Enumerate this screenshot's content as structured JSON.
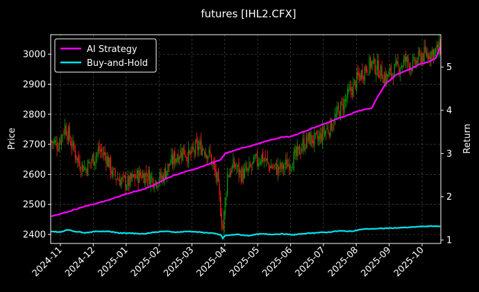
{
  "chart_data": {
    "type": "candlestick+line",
    "title": "futures [IHL2.CFX]",
    "ylabel_left": "Price",
    "ylabel_right": "Return",
    "ylim_left": [
      2370,
      3065
    ],
    "ylim_right": [
      0.92,
      5.75
    ],
    "y_ticks_left": [
      2400,
      2500,
      2600,
      2700,
      2800,
      2900,
      3000
    ],
    "y_ticks_right": [
      1,
      2,
      3,
      4,
      5
    ],
    "x_tick_labels": [
      "2024-11",
      "2024-12",
      "2025-01",
      "2025-02",
      "2025-03",
      "2025-04",
      "2025-05",
      "2025-06",
      "2025-07",
      "2025-08",
      "2025-09",
      "2025-10"
    ],
    "legend": {
      "placement": "top-left",
      "entries": [
        "AI Strategy",
        "Buy-and-Hold"
      ]
    },
    "grid": true,
    "colors": {
      "up": "#00a000",
      "down": "#ff2020",
      "ai": "#ff00ff",
      "bh": "#00e5ee",
      "grid": "#555555"
    },
    "price_close": [
      [
        0,
        2710
      ],
      [
        6,
        2700
      ],
      [
        12,
        2760
      ],
      [
        18,
        2700
      ],
      [
        24,
        2640
      ],
      [
        30,
        2620
      ],
      [
        36,
        2650
      ],
      [
        42,
        2680
      ],
      [
        48,
        2660
      ],
      [
        54,
        2600
      ],
      [
        61,
        2580
      ],
      [
        67,
        2570
      ],
      [
        73,
        2590
      ],
      [
        79,
        2600
      ],
      [
        85,
        2595
      ],
      [
        91,
        2580
      ],
      [
        97,
        2590
      ],
      [
        103,
        2630
      ],
      [
        109,
        2660
      ],
      [
        115,
        2680
      ],
      [
        121,
        2660
      ],
      [
        127,
        2690
      ],
      [
        133,
        2690
      ],
      [
        139,
        2660
      ],
      [
        145,
        2580
      ],
      [
        150,
        2420
      ],
      [
        154,
        2600
      ],
      [
        160,
        2630
      ],
      [
        166,
        2600
      ],
      [
        172,
        2610
      ],
      [
        178,
        2640
      ],
      [
        184,
        2660
      ],
      [
        190,
        2630
      ],
      [
        196,
        2620
      ],
      [
        202,
        2620
      ],
      [
        208,
        2640
      ],
      [
        214,
        2660
      ],
      [
        220,
        2700
      ],
      [
        226,
        2720
      ],
      [
        232,
        2710
      ],
      [
        238,
        2740
      ],
      [
        244,
        2760
      ],
      [
        250,
        2800
      ],
      [
        256,
        2840
      ],
      [
        262,
        2880
      ],
      [
        268,
        2920
      ],
      [
        274,
        2950
      ],
      [
        280,
        2970
      ],
      [
        286,
        2950
      ],
      [
        292,
        2920
      ],
      [
        298,
        2940
      ],
      [
        304,
        2960
      ],
      [
        310,
        2980
      ],
      [
        316,
        2960
      ],
      [
        322,
        2990
      ],
      [
        328,
        3000
      ],
      [
        335,
        3010
      ],
      [
        340,
        3020
      ]
    ],
    "ai_return": [
      [
        0,
        1.55
      ],
      [
        10,
        1.62
      ],
      [
        20,
        1.7
      ],
      [
        30,
        1.78
      ],
      [
        40,
        1.85
      ],
      [
        50,
        1.92
      ],
      [
        60,
        2.02
      ],
      [
        70,
        2.1
      ],
      [
        80,
        2.17
      ],
      [
        90,
        2.27
      ],
      [
        100,
        2.42
      ],
      [
        110,
        2.52
      ],
      [
        120,
        2.6
      ],
      [
        130,
        2.68
      ],
      [
        140,
        2.78
      ],
      [
        148,
        2.85
      ],
      [
        152,
        3.0
      ],
      [
        160,
        3.07
      ],
      [
        170,
        3.15
      ],
      [
        180,
        3.22
      ],
      [
        190,
        3.3
      ],
      [
        200,
        3.37
      ],
      [
        210,
        3.4
      ],
      [
        220,
        3.5
      ],
      [
        230,
        3.6
      ],
      [
        240,
        3.7
      ],
      [
        250,
        3.8
      ],
      [
        260,
        3.9
      ],
      [
        270,
        4.0
      ],
      [
        280,
        4.05
      ],
      [
        285,
        4.3
      ],
      [
        292,
        4.6
      ],
      [
        300,
        4.8
      ],
      [
        308,
        4.9
      ],
      [
        315,
        4.97
      ],
      [
        322,
        5.07
      ],
      [
        330,
        5.12
      ],
      [
        336,
        5.2
      ],
      [
        340,
        5.45
      ]
    ],
    "bh_return": [
      [
        0,
        1.2
      ],
      [
        8,
        1.18
      ],
      [
        14,
        1.24
      ],
      [
        20,
        1.2
      ],
      [
        30,
        1.17
      ],
      [
        40,
        1.2
      ],
      [
        50,
        1.2
      ],
      [
        60,
        1.16
      ],
      [
        70,
        1.16
      ],
      [
        80,
        1.14
      ],
      [
        90,
        1.18
      ],
      [
        100,
        1.2
      ],
      [
        110,
        1.18
      ],
      [
        120,
        1.2
      ],
      [
        130,
        1.18
      ],
      [
        140,
        1.16
      ],
      [
        148,
        1.12
      ],
      [
        150,
        1.04
      ],
      [
        152,
        1.1
      ],
      [
        162,
        1.13
      ],
      [
        172,
        1.1
      ],
      [
        182,
        1.14
      ],
      [
        192,
        1.13
      ],
      [
        202,
        1.14
      ],
      [
        212,
        1.12
      ],
      [
        222,
        1.15
      ],
      [
        232,
        1.17
      ],
      [
        242,
        1.18
      ],
      [
        252,
        1.21
      ],
      [
        262,
        1.2
      ],
      [
        272,
        1.25
      ],
      [
        282,
        1.26
      ],
      [
        292,
        1.27
      ],
      [
        302,
        1.28
      ],
      [
        312,
        1.29
      ],
      [
        322,
        1.31
      ],
      [
        332,
        1.32
      ],
      [
        340,
        1.32
      ]
    ]
  }
}
